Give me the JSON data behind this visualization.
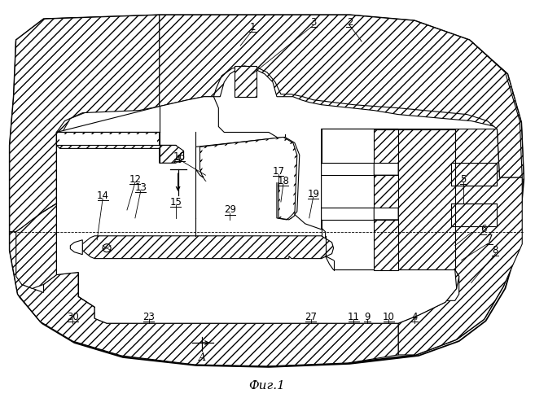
{
  "title": "Фиг.1",
  "bg": "#ffffff",
  "lc": "#000000"
}
